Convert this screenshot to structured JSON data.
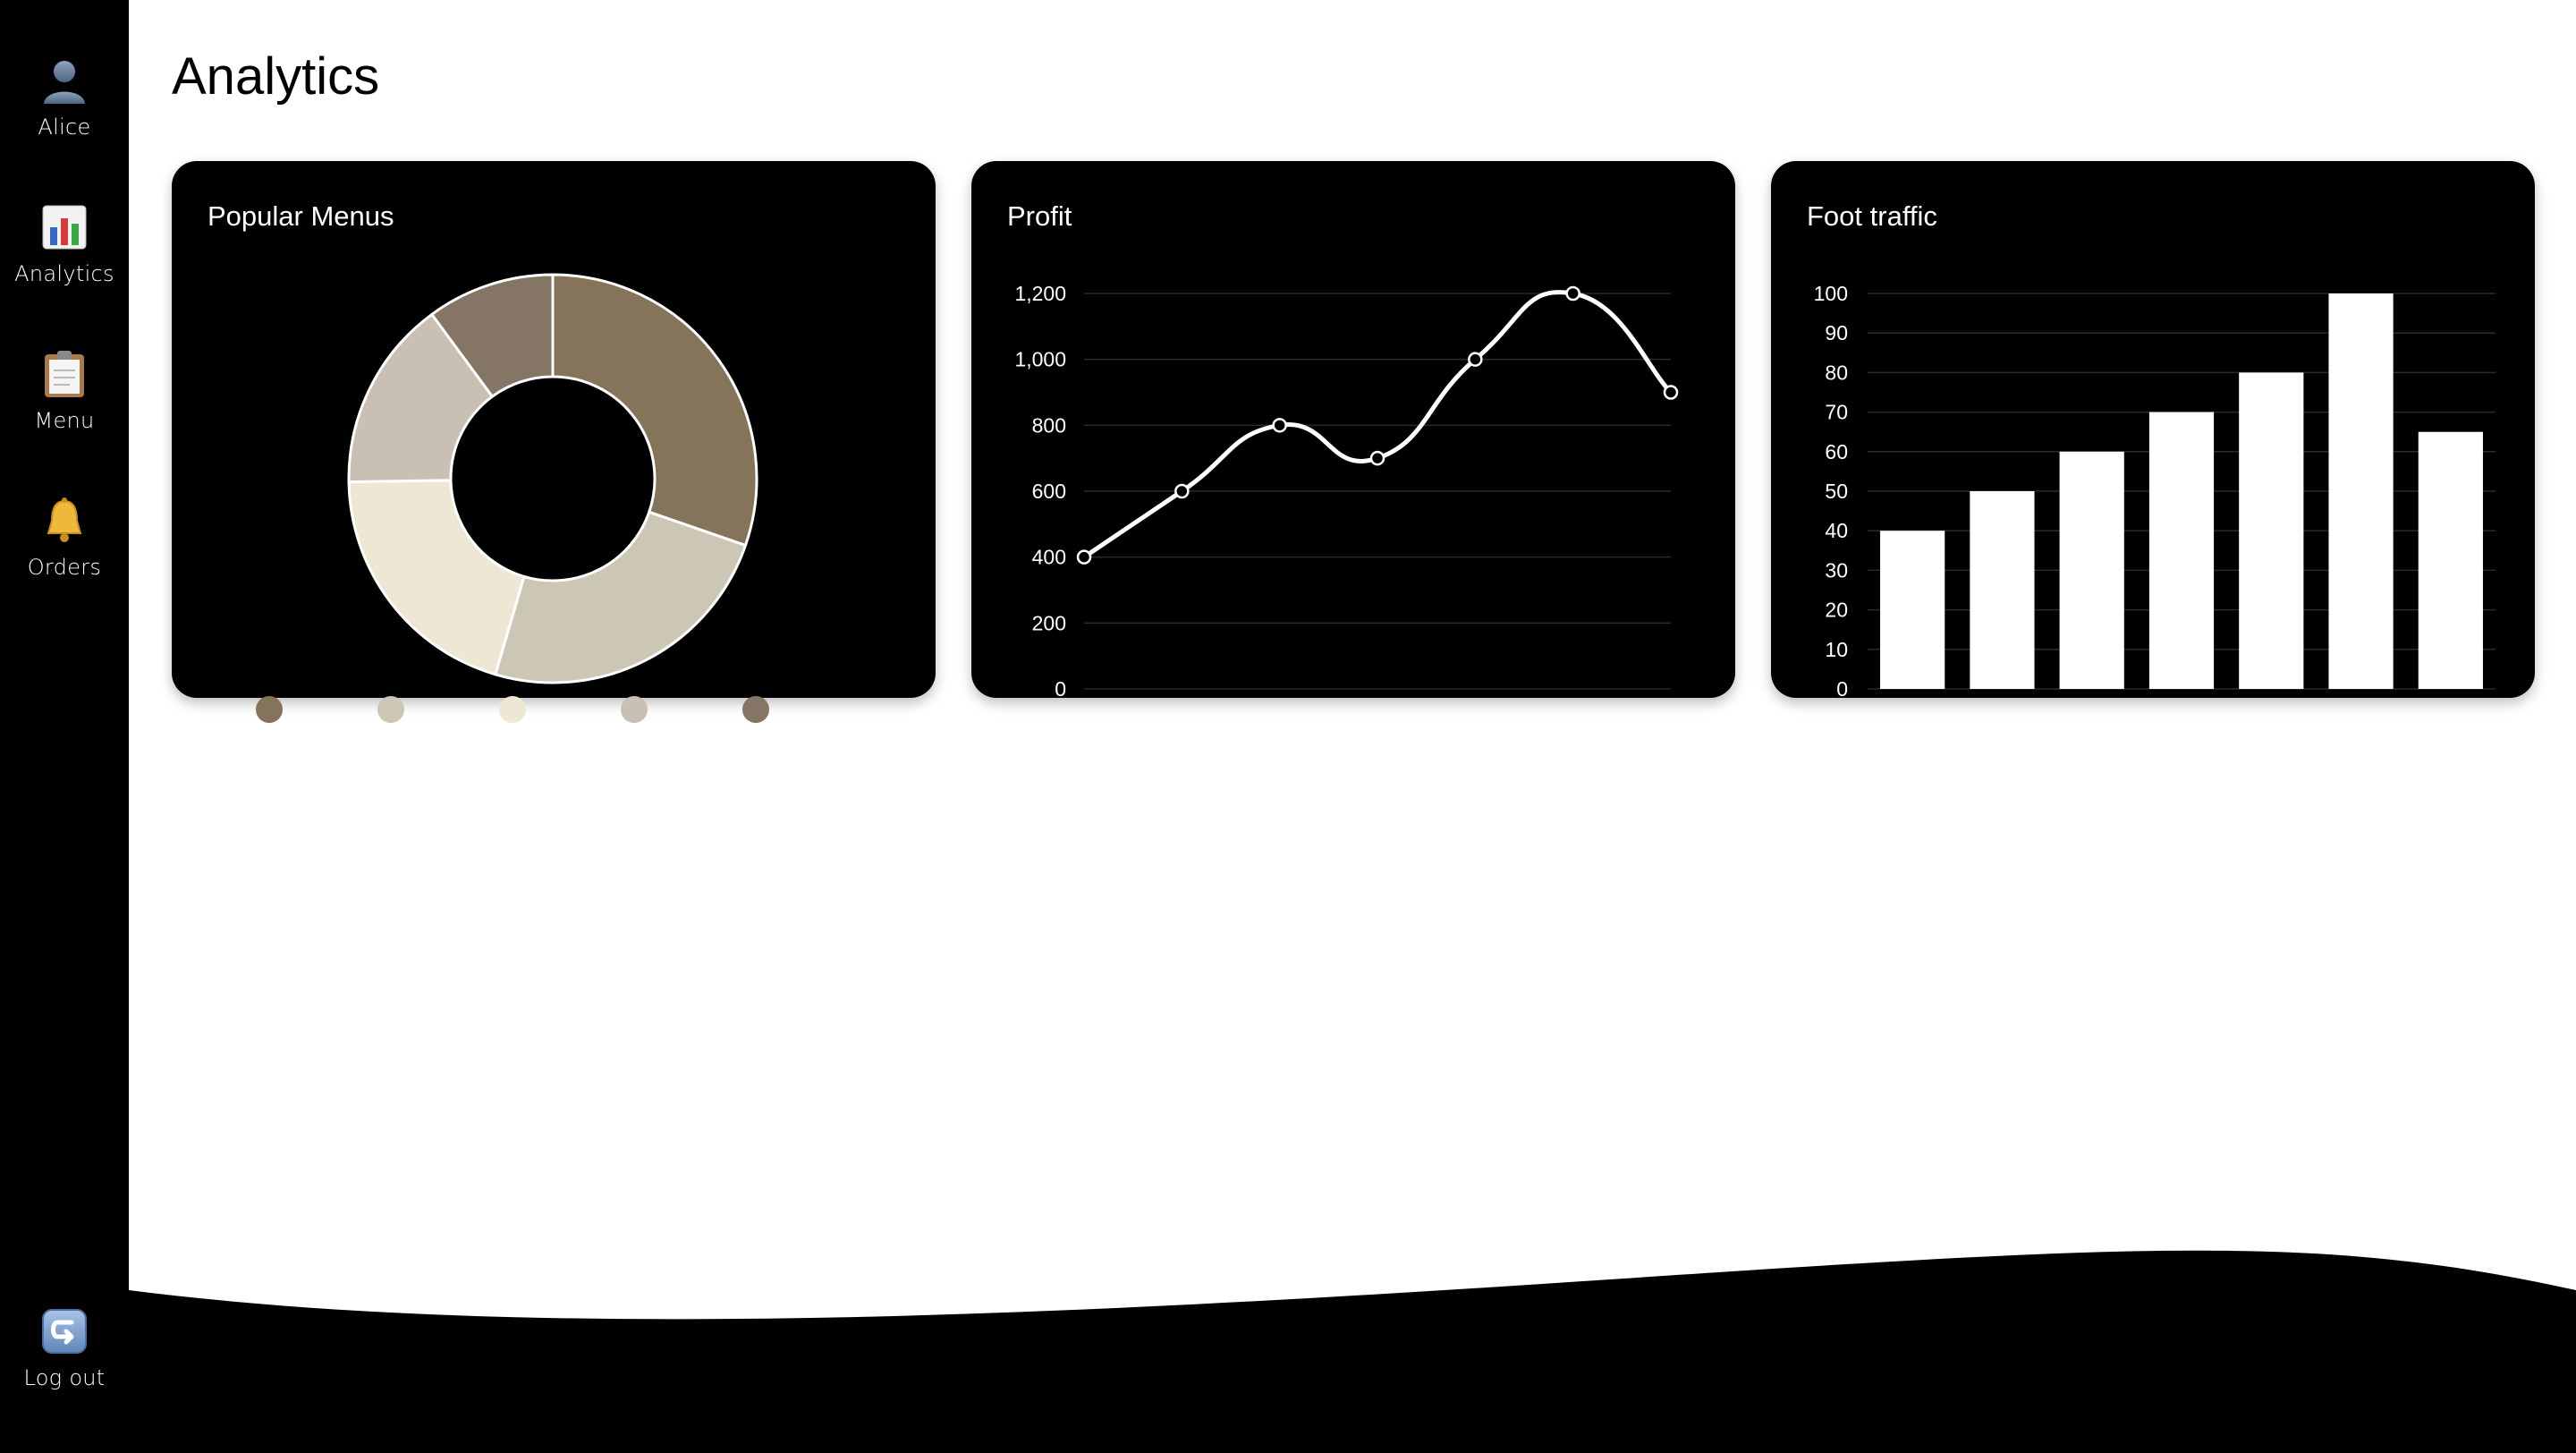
{
  "sidebar": {
    "profile": {
      "label": "Alice",
      "icon": "user-avatar-icon"
    },
    "items": [
      {
        "label": "Analytics",
        "icon": "bar-chart-icon"
      },
      {
        "label": "Menu",
        "icon": "clipboard-icon"
      },
      {
        "label": "Orders",
        "icon": "bell-icon"
      }
    ],
    "logout": {
      "label": "Log out",
      "icon": "logout-icon"
    }
  },
  "page": {
    "title": "Analytics"
  },
  "cards": {
    "popular": {
      "title": "Popular Menus"
    },
    "profit": {
      "title": "Profit"
    },
    "traffic": {
      "title": "Foot traffic"
    }
  },
  "chart_data": [
    {
      "type": "pie",
      "variant": "doughnut",
      "title": "Popular Menus",
      "values": [
        30,
        24,
        20,
        15,
        10
      ],
      "colors": [
        "#857459",
        "#ccc7b5",
        "#ede7d3",
        "#c9bfb2",
        "#857565"
      ],
      "legend": "bottom"
    },
    {
      "type": "line",
      "title": "Profit",
      "x": [
        1,
        2,
        3,
        4,
        5,
        6,
        7
      ],
      "values": [
        400,
        600,
        800,
        700,
        1000,
        1200,
        900
      ],
      "ylim": [
        0,
        1200
      ],
      "yticks": [
        "0",
        "200",
        "400",
        "600",
        "800",
        "1,000",
        "1,200"
      ],
      "grid": true,
      "color": "#ffffff"
    },
    {
      "type": "bar",
      "title": "Foot traffic",
      "categories": [
        "",
        "",
        "",
        "",
        "",
        "",
        ""
      ],
      "values": [
        40,
        50,
        60,
        70,
        80,
        100,
        65
      ],
      "ylim": [
        0,
        100
      ],
      "yticks": [
        "0",
        "10",
        "20",
        "30",
        "40",
        "50",
        "60",
        "70",
        "80",
        "90",
        "100"
      ],
      "grid": true,
      "color": "#ffffff"
    }
  ]
}
